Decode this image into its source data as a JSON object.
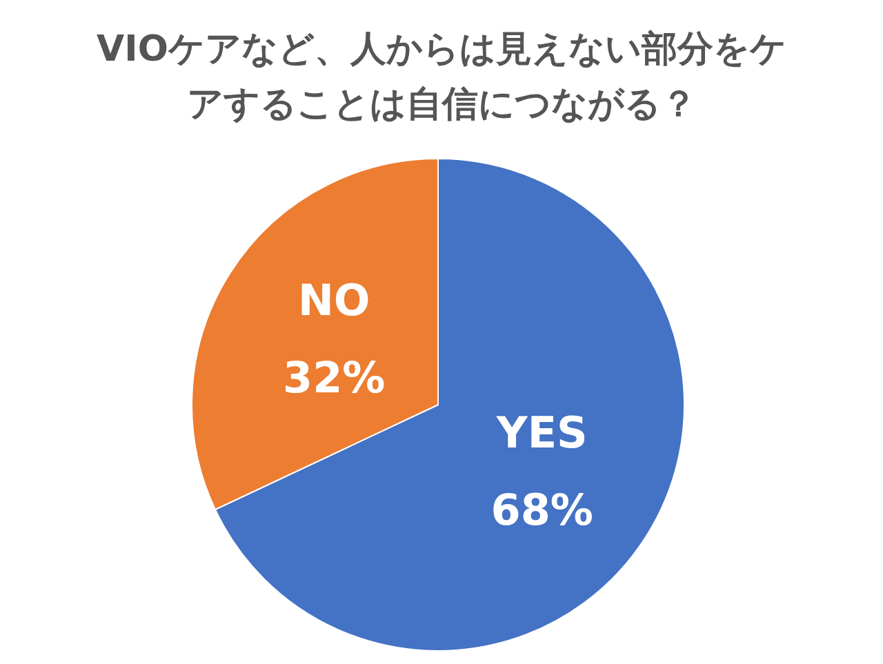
{
  "chart_data": {
    "type": "pie",
    "title": "VIOケアなど、人からは見えない部分をケアすることは自信につながる？",
    "categories": [
      "YES",
      "NO"
    ],
    "values": [
      68,
      32
    ],
    "value_labels": [
      "68%",
      "32%"
    ],
    "colors": [
      "#4472c4",
      "#ed7d31"
    ]
  }
}
